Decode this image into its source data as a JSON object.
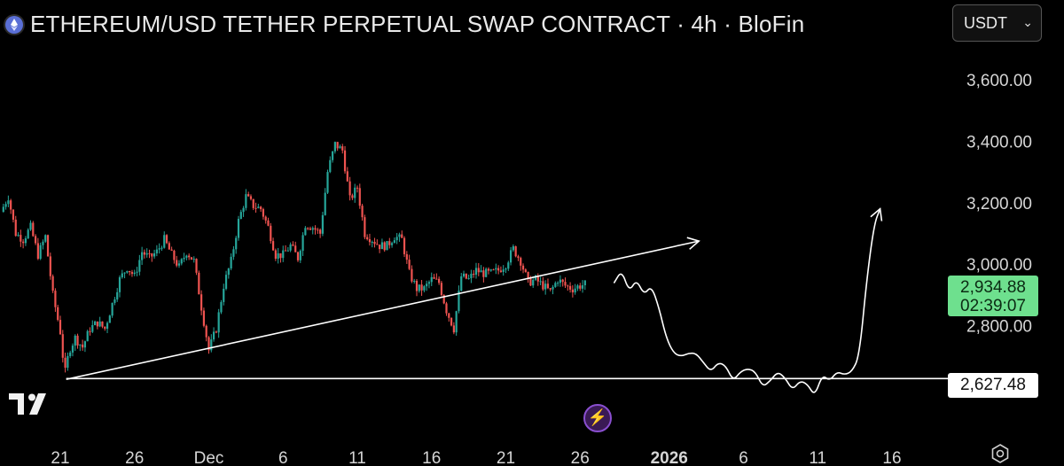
{
  "header": {
    "title": "ETHEREUM/USD TETHER PERPETUAL SWAP CONTRACT · 4h · BloFin",
    "symbol_icon": "ethereum-icon",
    "currency": "USDT",
    "currency_chevron": "chevron-down-icon"
  },
  "price_badge": {
    "price": "2,934.88",
    "countdown": "02:39:07",
    "color": "#6ee08e"
  },
  "hline_badge": {
    "value": "2,627.48"
  },
  "colors": {
    "up": "#26a69a",
    "down": "#ef5350",
    "background": "#000000",
    "drawing": "#ffffff"
  },
  "icons": {
    "logo": "tradingview-logo",
    "lightning": "lightning-icon",
    "settings": "gear-icon"
  },
  "chart_data": {
    "type": "candlestick",
    "timeframe": "4h",
    "ylim": [
      2580,
      3700
    ],
    "y_ticks": [
      {
        "value": 2800,
        "label": "2,800.00"
      },
      {
        "value": 3000,
        "label": "3,000.00"
      },
      {
        "value": 3200,
        "label": "3,200.00"
      },
      {
        "value": 3400,
        "label": "3,400.00"
      },
      {
        "value": 3600,
        "label": "3,600.00"
      }
    ],
    "x_ticks": [
      {
        "day": 0,
        "label": "21",
        "bold": false
      },
      {
        "day": 5,
        "label": "26",
        "bold": false
      },
      {
        "day": 10,
        "label": "Dec",
        "bold": false
      },
      {
        "day": 15,
        "label": "6",
        "bold": false
      },
      {
        "day": 20,
        "label": "11",
        "bold": false
      },
      {
        "day": 25,
        "label": "16",
        "bold": false
      },
      {
        "day": 30,
        "label": "21",
        "bold": false
      },
      {
        "day": 35,
        "label": "26",
        "bold": false
      },
      {
        "day": 41,
        "label": "2026",
        "bold": true
      },
      {
        "day": 46,
        "label": "6",
        "bold": false
      },
      {
        "day": 51,
        "label": "11",
        "bold": false
      },
      {
        "day": 56,
        "label": "16",
        "bold": false
      }
    ],
    "close_path": [
      [
        -4.0,
        3170
      ],
      [
        -3.5,
        3220
      ],
      [
        -3.0,
        3100
      ],
      [
        -2.5,
        3080
      ],
      [
        -2.0,
        3120
      ],
      [
        -1.5,
        3030
      ],
      [
        -1.0,
        3090
      ],
      [
        -0.5,
        2900
      ],
      [
        0.0,
        2780
      ],
      [
        0.3,
        2640
      ],
      [
        0.6,
        2720
      ],
      [
        1.0,
        2760
      ],
      [
        1.5,
        2730
      ],
      [
        2.0,
        2790
      ],
      [
        2.5,
        2810
      ],
      [
        3.0,
        2790
      ],
      [
        3.5,
        2870
      ],
      [
        4.0,
        2950
      ],
      [
        4.5,
        2990
      ],
      [
        5.0,
        2960
      ],
      [
        5.5,
        3040
      ],
      [
        6.0,
        3020
      ],
      [
        6.5,
        3040
      ],
      [
        7.0,
        3080
      ],
      [
        7.5,
        3030
      ],
      [
        8.0,
        2990
      ],
      [
        8.5,
        3040
      ],
      [
        9.0,
        3010
      ],
      [
        9.5,
        2860
      ],
      [
        10.0,
        2720
      ],
      [
        10.5,
        2790
      ],
      [
        11.0,
        2930
      ],
      [
        11.5,
        3010
      ],
      [
        12.0,
        3140
      ],
      [
        12.5,
        3220
      ],
      [
        13.0,
        3190
      ],
      [
        13.5,
        3180
      ],
      [
        14.0,
        3120
      ],
      [
        14.5,
        3030
      ],
      [
        15.0,
        3030
      ],
      [
        15.5,
        3060
      ],
      [
        16.0,
        3020
      ],
      [
        16.5,
        3130
      ],
      [
        17.0,
        3120
      ],
      [
        17.5,
        3100
      ],
      [
        18.0,
        3300
      ],
      [
        18.5,
        3390
      ],
      [
        19.0,
        3370
      ],
      [
        19.5,
        3210
      ],
      [
        20.0,
        3250
      ],
      [
        20.5,
        3100
      ],
      [
        21.0,
        3080
      ],
      [
        21.5,
        3060
      ],
      [
        22.0,
        3060
      ],
      [
        22.5,
        3090
      ],
      [
        23.0,
        3080
      ],
      [
        23.5,
        2970
      ],
      [
        24.0,
        2920
      ],
      [
        24.5,
        2920
      ],
      [
        25.0,
        2950
      ],
      [
        25.5,
        2940
      ],
      [
        26.0,
        2850
      ],
      [
        26.5,
        2790
      ],
      [
        27.0,
        2960
      ],
      [
        27.5,
        2950
      ],
      [
        28.0,
        2980
      ],
      [
        28.5,
        2970
      ],
      [
        29.0,
        2970
      ],
      [
        29.5,
        2980
      ],
      [
        30.0,
        3000
      ],
      [
        30.5,
        3050
      ],
      [
        31.0,
        3010
      ],
      [
        31.5,
        2940
      ],
      [
        32.0,
        2950
      ],
      [
        32.5,
        2930
      ],
      [
        33.0,
        2910
      ],
      [
        33.5,
        2950
      ],
      [
        34.0,
        2930
      ],
      [
        34.5,
        2920
      ],
      [
        35.0,
        2930
      ],
      [
        35.4,
        2935
      ]
    ],
    "trendline": [
      [
        0.4,
        2625
      ],
      [
        43.0,
        3075
      ]
    ],
    "horizontal_line": 2627.48,
    "projection_path": [
      [
        37.3,
        2940
      ],
      [
        37.8,
        2980
      ],
      [
        38.3,
        2910
      ],
      [
        38.8,
        2950
      ],
      [
        39.3,
        2900
      ],
      [
        39.8,
        2930
      ],
      [
        40.3,
        2860
      ],
      [
        40.8,
        2760
      ],
      [
        41.3,
        2710
      ],
      [
        41.8,
        2700
      ],
      [
        42.3,
        2710
      ],
      [
        42.8,
        2710
      ],
      [
        43.3,
        2680
      ],
      [
        43.8,
        2650
      ],
      [
        44.3,
        2680
      ],
      [
        44.8,
        2670
      ],
      [
        45.3,
        2620
      ],
      [
        45.8,
        2650
      ],
      [
        46.3,
        2660
      ],
      [
        46.8,
        2650
      ],
      [
        47.3,
        2600
      ],
      [
        47.8,
        2620
      ],
      [
        48.3,
        2650
      ],
      [
        48.8,
        2630
      ],
      [
        49.3,
        2590
      ],
      [
        49.8,
        2620
      ],
      [
        50.3,
        2610
      ],
      [
        50.8,
        2570
      ],
      [
        51.3,
        2640
      ],
      [
        51.8,
        2620
      ],
      [
        52.3,
        2650
      ],
      [
        52.8,
        2640
      ],
      [
        53.3,
        2650
      ],
      [
        53.8,
        2700
      ],
      [
        54.3,
        2950
      ],
      [
        54.8,
        3130
      ],
      [
        55.2,
        3180
      ]
    ]
  }
}
